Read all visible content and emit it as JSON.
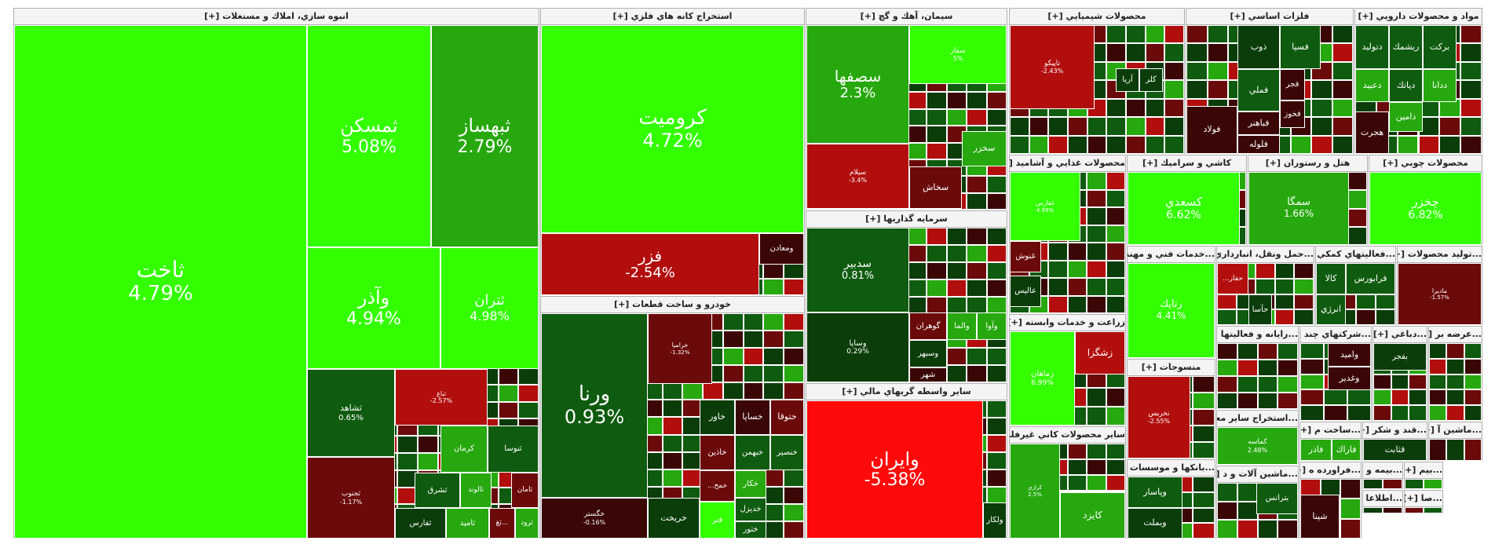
{
  "colors": {
    "bright_green": "#33ff00",
    "mid_green": "#26a80e",
    "dark_green": "#0f5b0f",
    "darkest_green": "#0a3d0a",
    "bright_red": "#ff0a0a",
    "mid_red": "#b20e0e",
    "dark_red": "#6b0a0a",
    "darkest_red": "#3a0606"
  },
  "chart_data": {
    "type": "treemap",
    "title": "",
    "sectors": [
      {
        "label": "انبوه سازي، املاك و مستغلات [+]",
        "stocks": [
          {
            "name": "ثاخت",
            "value": "4.79%"
          },
          {
            "name": "ثمسكن",
            "value": "5.08%"
          },
          {
            "name": "ثبهساز",
            "value": "2.79%"
          },
          {
            "name": "وآذر",
            "value": "4.94%"
          },
          {
            "name": "ثتران",
            "value": "4.98%"
          },
          {
            "name": "ثشاهد",
            "value": "0.65%"
          },
          {
            "name": "ثباغ",
            "value": "-2.57%"
          },
          {
            "name": "ثنوسا",
            "value": ""
          },
          {
            "name": "كرمان",
            "value": ""
          },
          {
            "name": "ثشرق",
            "value": ""
          },
          {
            "name": "ثالوند",
            "value": ""
          },
          {
            "name": "ثامان",
            "value": ""
          },
          {
            "name": "ثجنوب",
            "value": "-1.17%"
          },
          {
            "name": "ثفارس",
            "value": ""
          },
          {
            "name": "ثاميد",
            "value": ""
          },
          {
            "name": "...ثغ",
            "value": ""
          },
          {
            "name": "ثرود",
            "value": ""
          }
        ]
      },
      {
        "label": "استخراج كانه هاي فلزي [+]",
        "stocks": [
          {
            "name": "كروميت",
            "value": "4.72%"
          },
          {
            "name": "فزر",
            "value": "-2.54%"
          },
          {
            "name": "ومعادن",
            "value": ""
          }
        ]
      },
      {
        "label": "خودرو و ساخت قطعات [+]",
        "stocks": [
          {
            "name": "ورنا",
            "value": "0.93%"
          },
          {
            "name": "خراميا",
            "value": "-1.32%"
          },
          {
            "name": "خگستر",
            "value": "-0.16%"
          },
          {
            "name": "خاور",
            "value": ""
          },
          {
            "name": "خساپا",
            "value": ""
          },
          {
            "name": "ختوقا",
            "value": ""
          },
          {
            "name": "خاذين",
            "value": ""
          },
          {
            "name": "خبهمن",
            "value": ""
          },
          {
            "name": "خنصير",
            "value": ""
          },
          {
            "name": "خمح...",
            "value": ""
          },
          {
            "name": "خكار",
            "value": ""
          },
          {
            "name": "خديزل",
            "value": ""
          },
          {
            "name": "ختور",
            "value": ""
          },
          {
            "name": "خريخت",
            "value": ""
          },
          {
            "name": "فنر",
            "value": ""
          }
        ]
      },
      {
        "label": "سيمان، آهك و گچ [+]",
        "stocks": [
          {
            "name": "سصفها",
            "value": "2.3%"
          },
          {
            "name": "سفار",
            "value": "5%"
          },
          {
            "name": "سيلام",
            "value": "-3.4%"
          },
          {
            "name": "سخزر",
            "value": ""
          },
          {
            "name": "سخاش",
            "value": ""
          }
        ]
      },
      {
        "label": "سرمايه گذاريها [+]",
        "stocks": [
          {
            "name": "سدبير",
            "value": "0.81%"
          },
          {
            "name": "وساپا",
            "value": "0.29%"
          },
          {
            "name": "گوهران",
            "value": ""
          },
          {
            "name": "والما",
            "value": ""
          },
          {
            "name": "وآوا",
            "value": ""
          },
          {
            "name": "وسبهر",
            "value": ""
          },
          {
            "name": "شهر",
            "value": ""
          }
        ]
      },
      {
        "label": "ساير واسطه گريهاي مالي [+]",
        "stocks": [
          {
            "name": "وايران",
            "value": "-5.38%"
          },
          {
            "name": "ولكار",
            "value": ""
          }
        ]
      },
      {
        "label": "محصولات شيميايي [+]",
        "stocks": [
          {
            "name": "تاپيكو",
            "value": "-2.43%"
          },
          {
            "name": "آريا",
            "value": ""
          },
          {
            "name": "كلر",
            "value": ""
          }
        ]
      },
      {
        "label": "محصولات غذايي و آشاميد [+]",
        "stocks": [
          {
            "name": "غفارس",
            "value": "4.99%"
          },
          {
            "name": "غنوش",
            "value": ""
          },
          {
            "name": "عاليس",
            "value": ""
          }
        ]
      },
      {
        "label": "زراعت و خدمات وابسته [+]",
        "stocks": [
          {
            "name": "زماهان",
            "value": "6.99%"
          },
          {
            "name": "زشگزا",
            "value": ""
          }
        ]
      },
      {
        "label": "ساير محصولات كاني غيرفلزي [+]",
        "stocks": [
          {
            "name": "كرازي",
            "value": "2.5%"
          },
          {
            "name": "كايزد",
            "value": ""
          }
        ]
      },
      {
        "label": "فلزات اساسي [+]",
        "stocks": [
          {
            "name": "ذوب",
            "value": ""
          },
          {
            "name": "فسپا",
            "value": ""
          },
          {
            "name": "فملي",
            "value": ""
          },
          {
            "name": "فجر",
            "value": ""
          },
          {
            "name": "فولاد",
            "value": ""
          },
          {
            "name": "فباهنر",
            "value": ""
          },
          {
            "name": "فخوز",
            "value": ""
          },
          {
            "name": "فلوله",
            "value": ""
          }
        ]
      },
      {
        "label": "مواد و محصولات دارويي [+]",
        "stocks": [
          {
            "name": "ريشمك",
            "value": ""
          },
          {
            "name": "بركت",
            "value": ""
          },
          {
            "name": "دتوليد",
            "value": ""
          },
          {
            "name": "ددانا",
            "value": ""
          },
          {
            "name": "دعبيد",
            "value": ""
          },
          {
            "name": "دپاتك",
            "value": ""
          },
          {
            "name": "دامين",
            "value": ""
          },
          {
            "name": "هجرت",
            "value": ""
          }
        ]
      },
      {
        "label": "كاشي و سراميك [+]",
        "stocks": [
          {
            "name": "كسعدي",
            "value": "6.62%"
          }
        ]
      },
      {
        "label": "هتل و رستوران [+]",
        "stocks": [
          {
            "name": "سمگا",
            "value": "1.66%"
          }
        ]
      },
      {
        "label": "محصولات چوبي [+]",
        "stocks": [
          {
            "name": "چخزر",
            "value": "6.82%"
          }
        ]
      },
      {
        "label": "...خدمات فني و مهند [+]",
        "stocks": [
          {
            "name": "رتاپك",
            "value": "4.41%"
          }
        ]
      },
      {
        "label": "...حمل ونقل، انبارداري [+]",
        "stocks": [
          {
            "name": "حآسا",
            "value": ""
          },
          {
            "name": "حفار...",
            "value": ""
          }
        ]
      },
      {
        "label": "...فعاليتهاي كمكي [+]",
        "stocks": [
          {
            "name": "كالا",
            "value": ""
          },
          {
            "name": "فرابورس",
            "value": ""
          },
          {
            "name": "انرژي",
            "value": ""
          }
        ]
      },
      {
        "label": "...توليد محصولات [+]",
        "stocks": [
          {
            "name": "ماديرا",
            "value": "-1.57%"
          }
        ]
      },
      {
        "label": "منسوجات [+]",
        "stocks": [
          {
            "name": "نخريس",
            "value": "-2.55%"
          }
        ]
      },
      {
        "label": "...رايانه و فعاليتها [+]",
        "stocks": []
      },
      {
        "label": "...شركتهاي چند [+]",
        "stocks": [
          {
            "name": "وامید",
            "value": ""
          },
          {
            "name": "وغدير",
            "value": ""
          }
        ]
      },
      {
        "label": "...دباغي [+]",
        "stocks": [
          {
            "name": "بفجر",
            "value": ""
          }
        ]
      },
      {
        "label": "...عرضه بر [+]",
        "stocks": []
      },
      {
        "label": "...بانكها و موسسات ا [+]",
        "stocks": [
          {
            "name": "وپاسار",
            "value": ""
          },
          {
            "name": "وبملت",
            "value": ""
          }
        ]
      },
      {
        "label": "...استخراج ساير معا [+]",
        "stocks": [
          {
            "name": "كماسه",
            "value": "2.48%"
          }
        ]
      },
      {
        "label": "...ساخت م [+]",
        "stocks": [
          {
            "name": "فاذر",
            "value": ""
          },
          {
            "name": "فاراك",
            "value": ""
          }
        ]
      },
      {
        "label": "...قند و شكر [+]",
        "stocks": [
          {
            "name": "قثابت",
            "value": ""
          }
        ]
      },
      {
        "label": "...ماشين آ [+]",
        "stocks": []
      },
      {
        "label": "...ماشين آلات و د [+]",
        "stocks": [
          {
            "name": "بترانس",
            "value": ""
          }
        ]
      },
      {
        "label": "...فراورده ه [+]",
        "stocks": [
          {
            "name": "شپنا",
            "value": ""
          }
        ]
      },
      {
        "label": "...بيمه و [+]",
        "stocks": []
      },
      {
        "label": "...بيم [+]",
        "stocks": []
      },
      {
        "label": "...اطلاعا [+]",
        "stocks": []
      },
      {
        "label": "...صا [+]",
        "stocks": []
      }
    ]
  }
}
